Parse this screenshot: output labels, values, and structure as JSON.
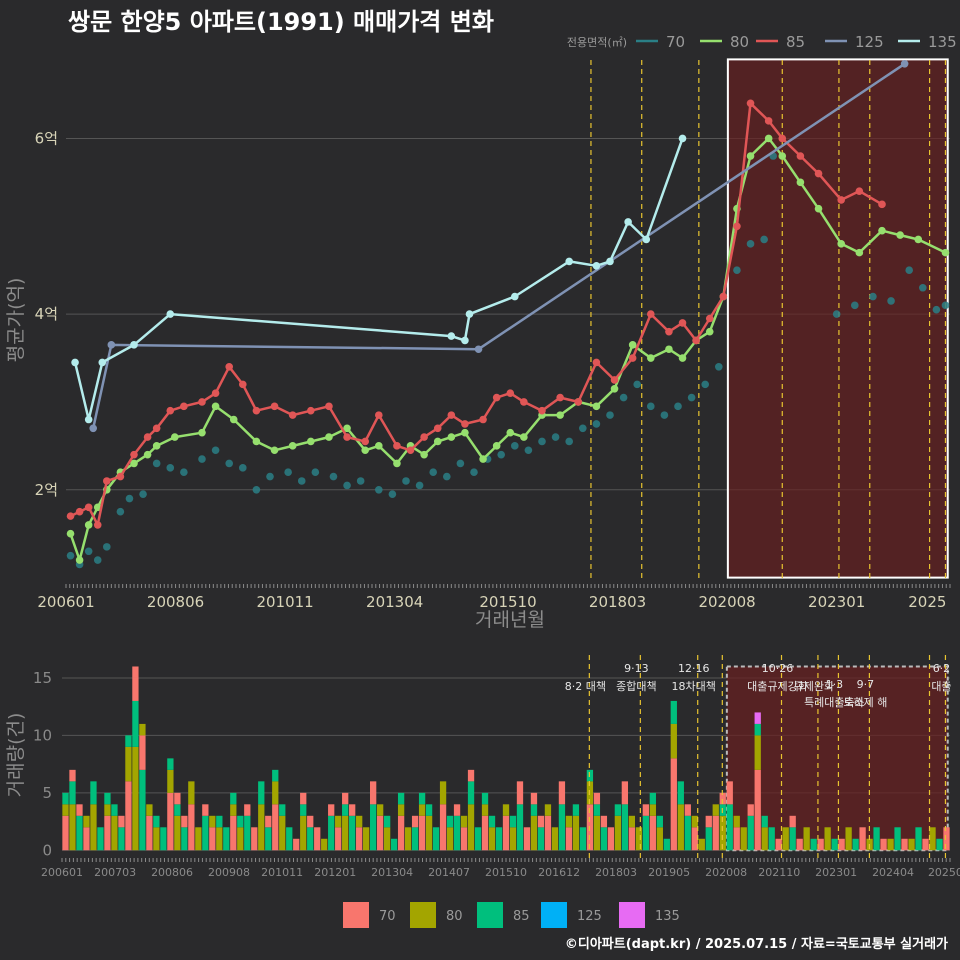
{
  "title": "쌍문 한양5 아파트(1991) 매매가격 변화",
  "footer": "©디아파트(dapt.kr) / 2025.07.15 / 자료=국토교통부 실거래가",
  "colors": {
    "70": "#2a7f86",
    "80": "#96df6e",
    "85": "#e05656",
    "125": "#7f92b4",
    "135": "#b4ecec",
    "bar70": "#f8766d",
    "bar80": "#a3a500",
    "bar85": "#00bf7d",
    "bar125": "#00b0f6",
    "bar135": "#e76bf3",
    "policy": "#e8c430",
    "highlight": "#6a1f1f"
  },
  "chart_data": [
    {
      "type": "line",
      "title": "쌍문 한양5 아파트(1991) 매매가격 변화",
      "xlabel": "거래년월",
      "ylabel": "평균가(억)",
      "xlim": [
        2006.0,
        2025.5
      ],
      "ylim": [
        0.95,
        6.95
      ],
      "yticks": [
        {
          "v": 2,
          "label": "2억"
        },
        {
          "v": 4,
          "label": "4억"
        },
        {
          "v": 6,
          "label": "6억"
        }
      ],
      "xticks": [
        {
          "v": 2006.0,
          "label": "200601"
        },
        {
          "v": 2008.4167,
          "label": "200806"
        },
        {
          "v": 2010.8333,
          "label": "201011"
        },
        {
          "v": 2013.25,
          "label": "201304"
        },
        {
          "v": 2015.75,
          "label": "201510"
        },
        {
          "v": 2018.1667,
          "label": "201803"
        },
        {
          "v": 2020.5833,
          "label": "202008"
        },
        {
          "v": 2023.0,
          "label": "202301"
        },
        {
          "v": 2025.0,
          "label": "2025"
        }
      ],
      "legend_title": "전용면적(㎡)",
      "highlight": {
        "x0": 2020.6,
        "x1": 2025.45,
        "y0": 1.0,
        "y1": 6.9
      },
      "policy_lines": [
        2017.58,
        2018.7,
        2019.96,
        2021.8,
        2023.05,
        2023.73,
        2025.05,
        2025.4
      ],
      "series": [
        {
          "name": "70",
          "style": "points",
          "x": [
            2006.1,
            2006.3,
            2006.5,
            2006.7,
            2006.9,
            2007.2,
            2007.4,
            2007.7,
            2008.0,
            2008.3,
            2008.6,
            2009.0,
            2009.3,
            2009.6,
            2009.9,
            2010.2,
            2010.5,
            2010.9,
            2011.2,
            2011.5,
            2011.9,
            2012.2,
            2012.5,
            2012.9,
            2013.2,
            2013.5,
            2013.8,
            2014.1,
            2014.4,
            2014.7,
            2015.0,
            2015.3,
            2015.6,
            2015.9,
            2016.2,
            2016.5,
            2016.8,
            2017.1,
            2017.4,
            2017.7,
            2018.0,
            2018.3,
            2018.6,
            2018.9,
            2019.2,
            2019.5,
            2019.8,
            2020.1,
            2020.4,
            2020.8,
            2021.1,
            2021.4,
            2021.6,
            2023.0,
            2023.4,
            2023.8,
            2024.2,
            2024.6,
            2024.9,
            2025.2,
            2025.4
          ],
          "y": [
            1.25,
            1.15,
            1.3,
            1.2,
            1.35,
            1.75,
            1.9,
            1.95,
            2.3,
            2.25,
            2.2,
            2.35,
            2.45,
            2.3,
            2.25,
            2.0,
            2.15,
            2.2,
            2.1,
            2.2,
            2.15,
            2.05,
            2.1,
            2.0,
            1.95,
            2.1,
            2.05,
            2.2,
            2.15,
            2.3,
            2.2,
            2.35,
            2.4,
            2.5,
            2.45,
            2.55,
            2.6,
            2.55,
            2.7,
            2.75,
            2.85,
            3.05,
            3.2,
            2.95,
            2.85,
            2.95,
            3.05,
            3.2,
            3.4,
            4.5,
            4.8,
            4.85,
            5.8,
            4.0,
            4.1,
            4.2,
            4.15,
            4.5,
            4.3,
            4.05,
            4.1
          ]
        },
        {
          "name": "80",
          "style": "line",
          "x": [
            2006.1,
            2006.3,
            2006.5,
            2006.7,
            2006.9,
            2007.2,
            2007.5,
            2007.8,
            2008.0,
            2008.4,
            2009.0,
            2009.3,
            2009.7,
            2010.2,
            2010.6,
            2011.0,
            2011.4,
            2011.8,
            2012.2,
            2012.6,
            2012.9,
            2013.3,
            2013.6,
            2013.9,
            2014.2,
            2014.5,
            2014.8,
            2015.2,
            2015.5,
            2015.8,
            2016.1,
            2016.5,
            2016.9,
            2017.3,
            2017.7,
            2018.1,
            2018.5,
            2018.9,
            2019.3,
            2019.6,
            2019.9,
            2020.2,
            2020.5,
            2020.8,
            2021.1,
            2021.5,
            2021.8,
            2022.2,
            2022.6,
            2023.1,
            2023.5,
            2024.0,
            2024.4,
            2024.8,
            2025.4
          ],
          "y": [
            1.5,
            1.2,
            1.6,
            1.8,
            2.0,
            2.2,
            2.3,
            2.4,
            2.5,
            2.6,
            2.65,
            2.95,
            2.8,
            2.55,
            2.45,
            2.5,
            2.55,
            2.6,
            2.7,
            2.45,
            2.5,
            2.3,
            2.5,
            2.4,
            2.55,
            2.6,
            2.65,
            2.35,
            2.5,
            2.65,
            2.6,
            2.85,
            2.85,
            3.0,
            2.95,
            3.15,
            3.65,
            3.5,
            3.6,
            3.5,
            3.7,
            3.8,
            4.2,
            5.2,
            5.8,
            6.0,
            5.8,
            5.5,
            5.2,
            4.8,
            4.7,
            4.95,
            4.9,
            4.85,
            4.7
          ]
        },
        {
          "name": "85",
          "style": "line",
          "x": [
            2006.1,
            2006.3,
            2006.5,
            2006.7,
            2006.9,
            2007.2,
            2007.5,
            2007.8,
            2008.0,
            2008.3,
            2008.6,
            2009.0,
            2009.3,
            2009.6,
            2009.9,
            2010.2,
            2010.6,
            2011.0,
            2011.4,
            2011.8,
            2012.2,
            2012.6,
            2012.9,
            2013.3,
            2013.6,
            2013.9,
            2014.2,
            2014.5,
            2014.8,
            2015.2,
            2015.5,
            2015.8,
            2016.1,
            2016.5,
            2016.9,
            2017.3,
            2017.7,
            2018.1,
            2018.5,
            2018.9,
            2019.3,
            2019.6,
            2019.9,
            2020.2,
            2020.5,
            2020.8,
            2021.1,
            2021.5,
            2021.8,
            2022.2,
            2022.6,
            2023.1,
            2023.5,
            2024.0
          ],
          "y": [
            1.7,
            1.75,
            1.8,
            1.6,
            2.1,
            2.15,
            2.4,
            2.6,
            2.7,
            2.9,
            2.95,
            3.0,
            3.1,
            3.4,
            3.2,
            2.9,
            2.95,
            2.85,
            2.9,
            2.95,
            2.6,
            2.55,
            2.85,
            2.5,
            2.45,
            2.6,
            2.7,
            2.85,
            2.75,
            2.8,
            3.05,
            3.1,
            3.0,
            2.9,
            3.05,
            3.0,
            3.45,
            3.25,
            3.5,
            4.0,
            3.8,
            3.9,
            3.7,
            3.95,
            4.2,
            5.0,
            6.4,
            6.2,
            6.0,
            5.8,
            5.6,
            5.3,
            5.4,
            5.25
          ]
        },
        {
          "name": "125",
          "style": "line",
          "x": [
            2006.6,
            2007.0,
            2015.1,
            2024.5
          ],
          "y": [
            2.7,
            3.65,
            3.6,
            6.85
          ]
        },
        {
          "name": "135",
          "style": "line",
          "x": [
            2006.2,
            2006.5,
            2006.8,
            2007.5,
            2008.3,
            2014.5,
            2014.8,
            2014.9,
            2015.9,
            2017.1,
            2017.7,
            2018.0,
            2018.4,
            2018.8,
            2019.6
          ],
          "y": [
            3.45,
            2.8,
            3.45,
            3.65,
            4.0,
            3.75,
            3.7,
            4.0,
            4.2,
            4.6,
            4.55,
            4.6,
            5.05,
            4.85,
            6.0
          ]
        }
      ]
    },
    {
      "type": "bar",
      "ylabel": "거래량(건)",
      "xlim": [
        2006.0,
        2025.5
      ],
      "ylim": [
        -0.5,
        17
      ],
      "yticks": [
        0,
        5,
        10,
        15
      ],
      "xticks": [
        {
          "v": 2006.0,
          "label": "200601"
        },
        {
          "v": 2007.167,
          "label": "200703"
        },
        {
          "v": 2008.417,
          "label": "200806"
        },
        {
          "v": 2009.667,
          "label": "200908"
        },
        {
          "v": 2010.833,
          "label": "201011"
        },
        {
          "v": 2012.0,
          "label": "201201"
        },
        {
          "v": 2013.25,
          "label": "201304"
        },
        {
          "v": 2014.5,
          "label": "201407"
        },
        {
          "v": 2015.75,
          "label": "201510"
        },
        {
          "v": 2016.917,
          "label": "201612"
        },
        {
          "v": 2018.167,
          "label": "201803"
        },
        {
          "v": 2019.333,
          "label": "201905"
        },
        {
          "v": 2020.583,
          "label": "202008"
        },
        {
          "v": 2021.75,
          "label": "202110"
        },
        {
          "v": 2023.0,
          "label": "202301"
        },
        {
          "v": 2024.25,
          "label": "202404"
        },
        {
          "v": 2025.4,
          "label": "20250"
        }
      ],
      "highlight": {
        "x0": 2020.6,
        "x1": 2025.45
      },
      "policy_lines": [
        2017.58,
        2018.7,
        2019.96,
        2020.5,
        2021.8,
        2022.6,
        2023.05,
        2023.73,
        2025.05,
        2025.4
      ],
      "policies": [
        {
          "x": 2017.58,
          "date": "",
          "label": "8·2 대책"
        },
        {
          "x": 2018.7,
          "date": "9·13",
          "label": "종합대책"
        },
        {
          "x": 2019.96,
          "date": "12·16",
          "label": "18차대책"
        },
        {
          "x": 2021.8,
          "date": "10·26",
          "label": "대출규제강화"
        },
        {
          "x": 2022.6,
          "date": "",
          "label": "규제완화"
        },
        {
          "x": 2023.05,
          "date": "1·3",
          "label": "특례대출축소"
        },
        {
          "x": 2023.73,
          "date": "9·7",
          "label": "토허제 해"
        },
        {
          "x": 2025.4,
          "date": "6·2",
          "label": "대출"
        }
      ],
      "series_names": [
        "70",
        "80",
        "85",
        "125",
        "135"
      ],
      "values": [
        5,
        7,
        4,
        3,
        6,
        2,
        5,
        4,
        3,
        10,
        16,
        11,
        4,
        3,
        2,
        8,
        5,
        3,
        6,
        2,
        4,
        3,
        3,
        2,
        5,
        3,
        4,
        2,
        6,
        3,
        7,
        4,
        2,
        1,
        5,
        3,
        2,
        1,
        4,
        3,
        5,
        4,
        3,
        2,
        6,
        4,
        3,
        1,
        5,
        2,
        3,
        5,
        4,
        2,
        6,
        3,
        4,
        3,
        7,
        2,
        5,
        3,
        2,
        4,
        3,
        6,
        2,
        5,
        3,
        4,
        2,
        6,
        3,
        4,
        2,
        7,
        5,
        3,
        2,
        4,
        6,
        3,
        2,
        4,
        5,
        3,
        1,
        13,
        6,
        4,
        3,
        1,
        3,
        4,
        5,
        6,
        3,
        2,
        4,
        12,
        3,
        2,
        1,
        2,
        3,
        1,
        2,
        1,
        1,
        2,
        1,
        1,
        2,
        1,
        2,
        1,
        2,
        1,
        1,
        2,
        1,
        1,
        2,
        1,
        2,
        1,
        2
      ],
      "legend": [
        "70",
        "80",
        "85",
        "125",
        "135"
      ]
    }
  ]
}
